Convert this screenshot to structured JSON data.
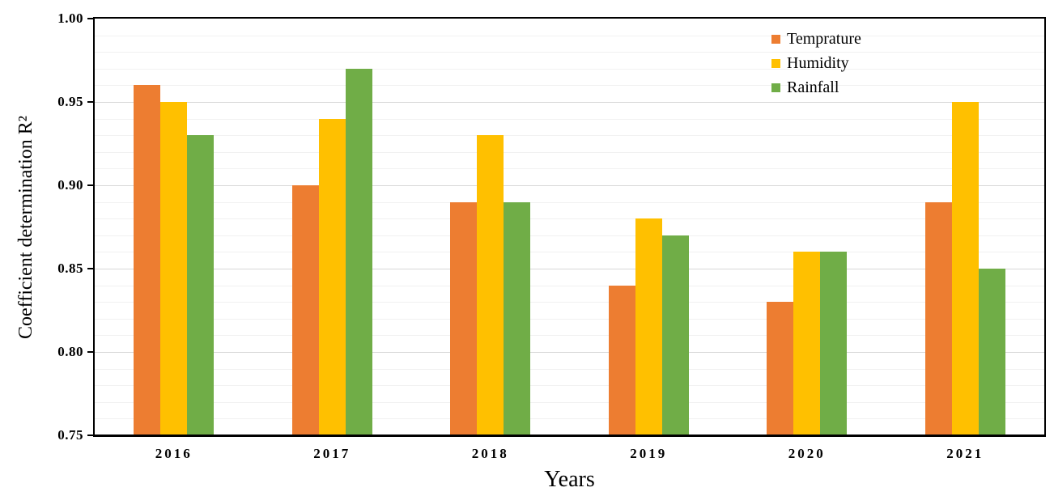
{
  "page": {
    "background": "#FFFFFF"
  },
  "chart_data": {
    "type": "bar",
    "title": "",
    "xlabel": "Years",
    "ylabel": "Coefficient determination R²",
    "categories": [
      "2016",
      "2017",
      "2018",
      "2019",
      "2020",
      "2021"
    ],
    "series": [
      {
        "name": "Temprature",
        "color": "#ED7D31",
        "values": [
          0.96,
          0.9,
          0.89,
          0.84,
          0.83,
          0.89
        ]
      },
      {
        "name": "Humidity",
        "color": "#FFC000",
        "values": [
          0.95,
          0.94,
          0.93,
          0.88,
          0.86,
          0.95
        ]
      },
      {
        "name": "Rainfall",
        "color": "#70AD47",
        "values": [
          0.93,
          0.97,
          0.89,
          0.87,
          0.86,
          0.85
        ]
      }
    ],
    "ylim": [
      0.75,
      1.0
    ],
    "ytick_step": 0.05,
    "minor_grid_step": 0.01,
    "ytick_labels": [
      "1.00",
      "0.95",
      "0.90",
      "0.85",
      "0.80",
      "0.75"
    ],
    "grid": true,
    "legend_position": "top-right",
    "colors": {
      "axis": "#000000",
      "major_gridline": "#D8D8D8",
      "minor_gridline": "#F1F1F1",
      "text": "#000000"
    }
  }
}
